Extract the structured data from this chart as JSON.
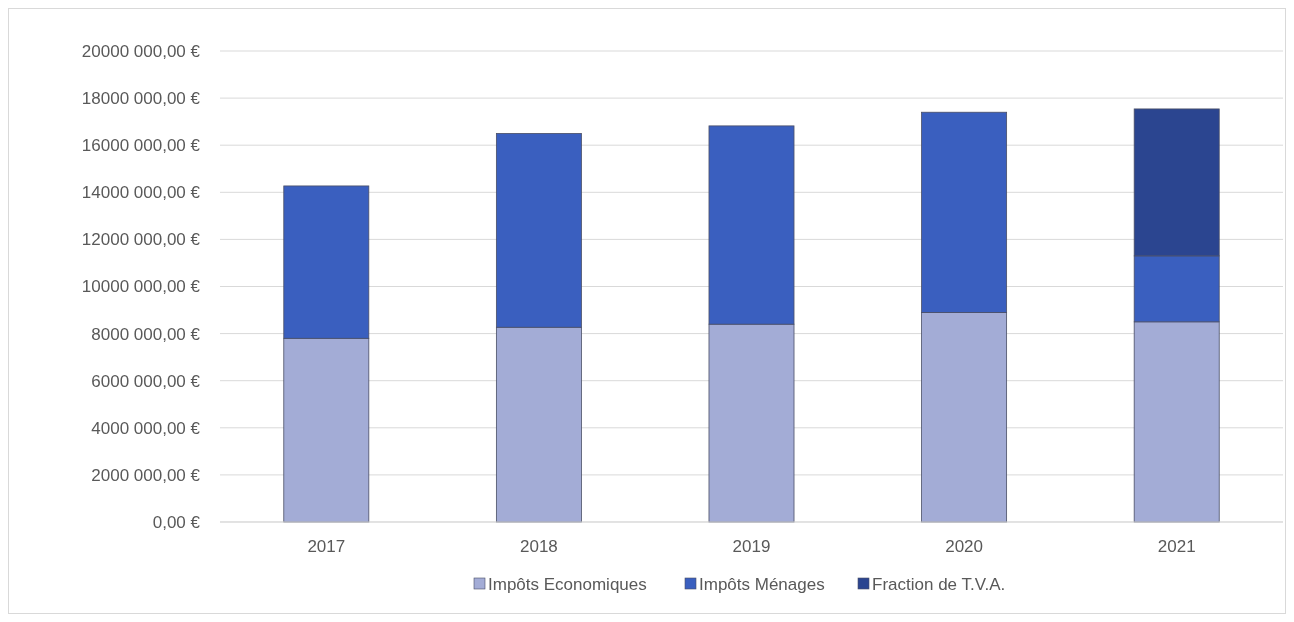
{
  "chart_data": {
    "type": "bar",
    "stacked": true,
    "categories": [
      "2017",
      "2018",
      "2019",
      "2020",
      "2021"
    ],
    "series": [
      {
        "name": "Impôts Economiques",
        "color": "#a3acd6",
        "values": [
          7800000,
          8270000,
          8400000,
          8900000,
          8500000
        ]
      },
      {
        "name": "Impôts Ménages",
        "color": "#3a5fbf",
        "values": [
          6470000,
          8230000,
          8420000,
          8500000,
          2800000
        ]
      },
      {
        "name": "Fraction de T.V.A.",
        "color": "#2b4590",
        "values": [
          null,
          null,
          null,
          null,
          6240000
        ]
      }
    ],
    "ylim": [
      0,
      20000000
    ],
    "yticks": [
      {
        "value": 0,
        "label": "0,00 €"
      },
      {
        "value": 2000000,
        "label": "2000 000,00 €"
      },
      {
        "value": 4000000,
        "label": "4000 000,00 €"
      },
      {
        "value": 6000000,
        "label": "6000 000,00 €"
      },
      {
        "value": 8000000,
        "label": "8000 000,00 €"
      },
      {
        "value": 10000000,
        "label": "10000 000,00 €"
      },
      {
        "value": 12000000,
        "label": "12000 000,00 €"
      },
      {
        "value": 14000000,
        "label": "14000 000,00 €"
      },
      {
        "value": 16000000,
        "label": "16000 000,00 €"
      },
      {
        "value": 18000000,
        "label": "18000 000,00 €"
      },
      {
        "value": 20000000,
        "label": "20000 000,00 €"
      }
    ],
    "grid": "y",
    "legend": "bottom"
  }
}
